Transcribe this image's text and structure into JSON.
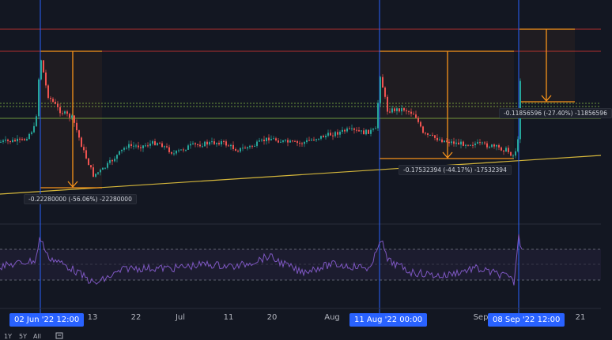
{
  "time_axis": {
    "ticks": [
      "13",
      "22",
      "Jul",
      "11",
      "20",
      "Aug",
      "Sep",
      "21"
    ],
    "markers": [
      "02 Jun '22   12:00",
      "11 Aug '22   00:00",
      "08 Sep '22   12:00"
    ]
  },
  "measurements": [
    {
      "text": "-0.22280000 (-56.06%) -22280000",
      "percent": -56.06
    },
    {
      "text": "-0.17532394 (-44.17%) -17532394",
      "percent": -44.17
    },
    {
      "text": "-0.11856596 (-27.40%) -11856596",
      "percent": -27.4
    }
  ],
  "bottom_bar": [
    "1Y",
    "5Y",
    "All"
  ],
  "colors": {
    "background": "#131722",
    "candle_up": "#26a69a",
    "candle_down": "#ef5350",
    "rsi_line": "#7e57c2",
    "measure": "#f7931a",
    "trendline": "#d4b63b",
    "marker_badge": "#2962ff"
  },
  "icons": [
    "chart-settings-icon"
  ]
}
